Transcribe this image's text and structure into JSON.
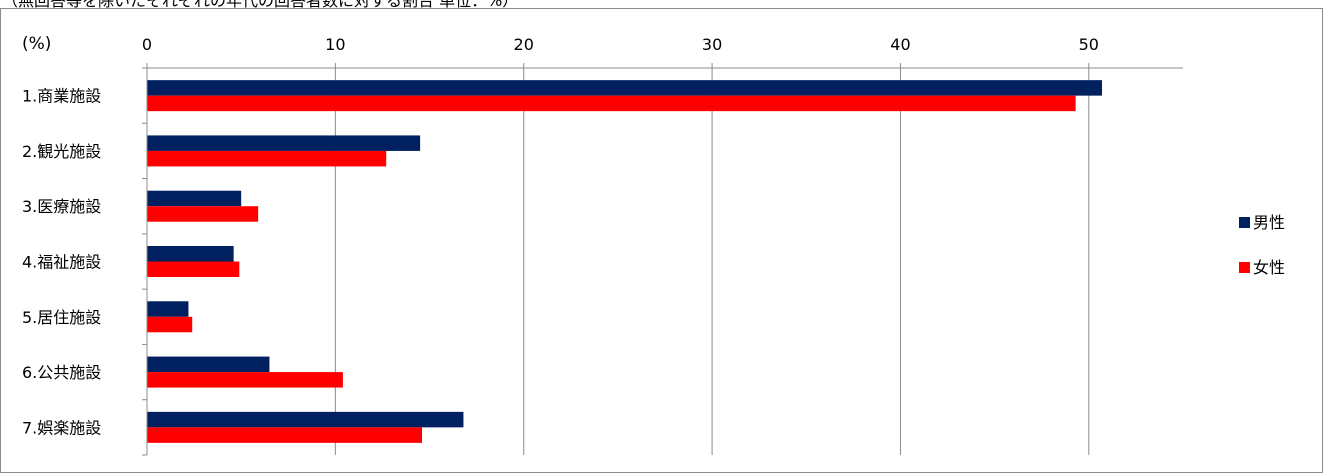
{
  "caption": "（無回答等を除いたそれぞれの年代の回答者数に対する割合 単位：%）",
  "chart_data": {
    "type": "bar",
    "orientation": "horizontal",
    "unit_label": "(%)",
    "categories": [
      "1.商業施設",
      "2.観光施設",
      "3.医療施設",
      "4.福祉施設",
      "5.居住施設",
      "6.公共施設",
      "7.娯楽施設"
    ],
    "series": [
      {
        "name": "男性",
        "color": "#002060",
        "values": [
          50.7,
          14.5,
          5.0,
          4.6,
          2.2,
          6.5,
          16.8
        ]
      },
      {
        "name": "女性",
        "color": "#ff0000",
        "values": [
          49.3,
          12.7,
          5.9,
          4.9,
          2.4,
          10.4,
          14.6
        ]
      }
    ],
    "xlim": [
      0,
      55
    ],
    "xticks": [
      0,
      10,
      20,
      30,
      40,
      50
    ],
    "grid": true,
    "legend_position": "right"
  }
}
